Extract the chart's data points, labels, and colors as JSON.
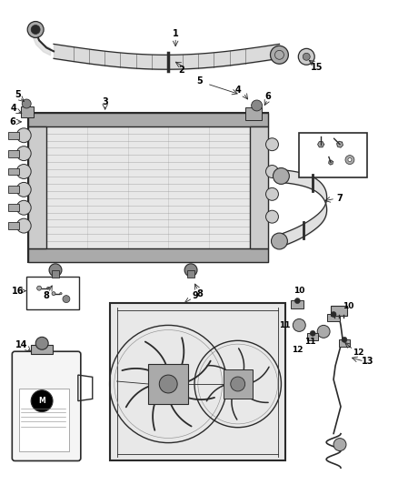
{
  "bg_color": "#ffffff",
  "fig_width": 4.38,
  "fig_height": 5.33,
  "dpi": 100,
  "line_color": "#2a2a2a",
  "gray1": "#888888",
  "gray2": "#aaaaaa",
  "gray3": "#cccccc",
  "gray4": "#e8e8e8",
  "gray5": "#555555"
}
